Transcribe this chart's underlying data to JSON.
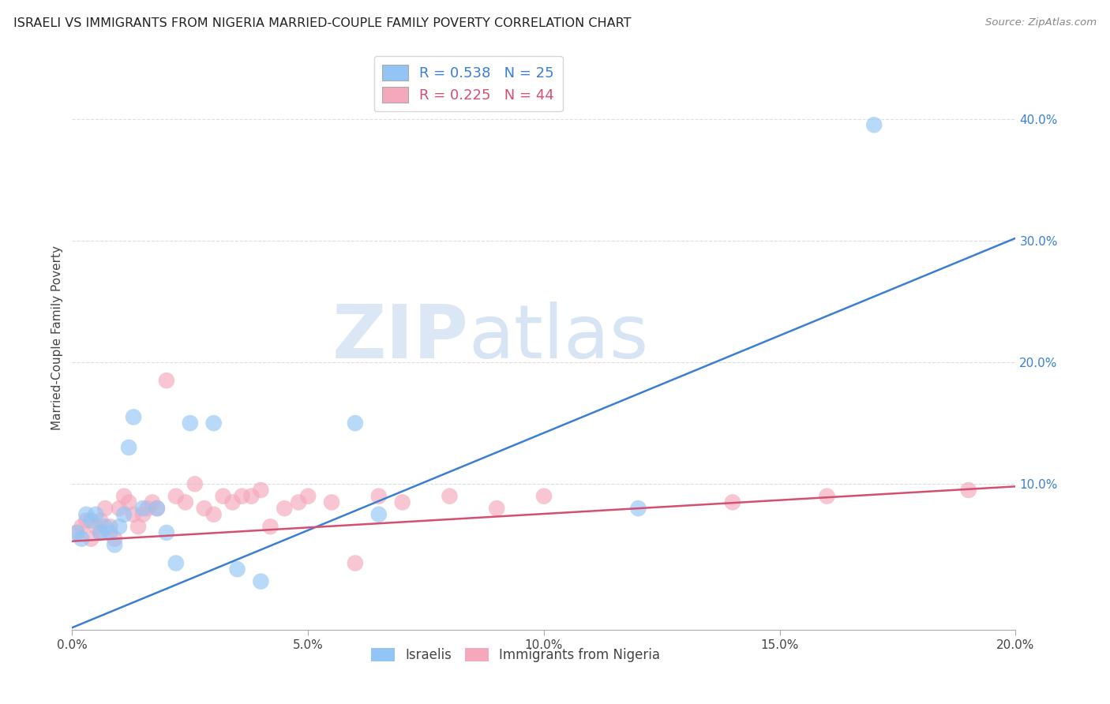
{
  "title": "ISRAELI VS IMMIGRANTS FROM NIGERIA MARRIED-COUPLE FAMILY POVERTY CORRELATION CHART",
  "source": "Source: ZipAtlas.com",
  "ylabel": "Married-Couple Family Poverty",
  "xlim": [
    0.0,
    0.2
  ],
  "ylim": [
    -0.02,
    0.46
  ],
  "yticks": [
    0.1,
    0.2,
    0.3,
    0.4
  ],
  "xticks": [
    0.0,
    0.05,
    0.1,
    0.15,
    0.2
  ],
  "blue_R": 0.538,
  "blue_N": 25,
  "pink_R": 0.225,
  "pink_N": 44,
  "blue_color": "#92C5F5",
  "pink_color": "#F5A8BC",
  "blue_line_color": "#3A7FD4",
  "pink_line_color": "#D45070",
  "legend_label_blue": "Israelis",
  "legend_label_pink": "Immigrants from Nigeria",
  "watermark_zip": "ZIP",
  "watermark_atlas": "atlas",
  "blue_line_x": [
    0.0,
    0.2
  ],
  "blue_line_y": [
    -0.018,
    0.302
  ],
  "pink_line_x": [
    0.0,
    0.2
  ],
  "pink_line_y": [
    0.053,
    0.098
  ],
  "blue_points_x": [
    0.001,
    0.002,
    0.003,
    0.004,
    0.005,
    0.006,
    0.007,
    0.008,
    0.009,
    0.01,
    0.011,
    0.012,
    0.013,
    0.015,
    0.018,
    0.02,
    0.022,
    0.025,
    0.03,
    0.035,
    0.04,
    0.06,
    0.065,
    0.12,
    0.17
  ],
  "blue_points_y": [
    0.06,
    0.055,
    0.075,
    0.07,
    0.075,
    0.06,
    0.065,
    0.06,
    0.05,
    0.065,
    0.075,
    0.13,
    0.155,
    0.08,
    0.08,
    0.06,
    0.035,
    0.15,
    0.15,
    0.03,
    0.02,
    0.15,
    0.075,
    0.08,
    0.395
  ],
  "pink_points_x": [
    0.001,
    0.002,
    0.003,
    0.004,
    0.005,
    0.006,
    0.006,
    0.007,
    0.008,
    0.009,
    0.01,
    0.011,
    0.012,
    0.013,
    0.014,
    0.015,
    0.016,
    0.017,
    0.018,
    0.02,
    0.022,
    0.024,
    0.026,
    0.028,
    0.03,
    0.032,
    0.034,
    0.036,
    0.038,
    0.04,
    0.042,
    0.045,
    0.048,
    0.05,
    0.055,
    0.06,
    0.065,
    0.07,
    0.08,
    0.09,
    0.1,
    0.14,
    0.16,
    0.19
  ],
  "pink_points_y": [
    0.06,
    0.065,
    0.07,
    0.055,
    0.065,
    0.06,
    0.07,
    0.08,
    0.065,
    0.055,
    0.08,
    0.09,
    0.085,
    0.075,
    0.065,
    0.075,
    0.08,
    0.085,
    0.08,
    0.185,
    0.09,
    0.085,
    0.1,
    0.08,
    0.075,
    0.09,
    0.085,
    0.09,
    0.09,
    0.095,
    0.065,
    0.08,
    0.085,
    0.09,
    0.085,
    0.035,
    0.09,
    0.085,
    0.09,
    0.08,
    0.09,
    0.085,
    0.09,
    0.095
  ]
}
